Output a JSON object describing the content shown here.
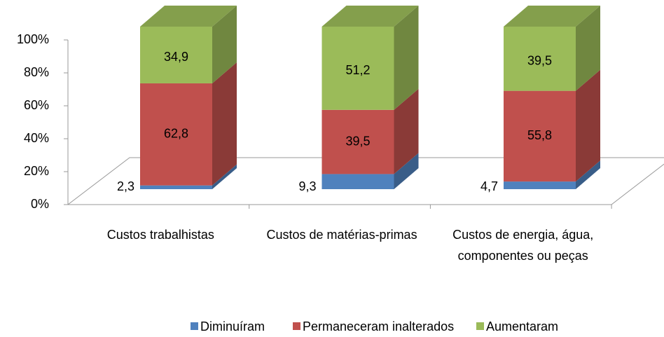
{
  "chart_data": {
    "type": "bar3d_stacked",
    "categories": [
      "Custos trabalhistas",
      "Custos de matérias-primas",
      "Custos de energia, água, componentes ou peças"
    ],
    "series": [
      {
        "name": "Diminuíram",
        "color": "#4f81bd",
        "values": [
          2.3,
          9.3,
          4.7
        ],
        "value_labels": [
          "2,3",
          "9,3",
          "4,7"
        ]
      },
      {
        "name": "Permaneceram inalterados",
        "color": "#c0504d",
        "values": [
          62.8,
          39.5,
          55.8
        ],
        "value_labels": [
          "62,8",
          "39,5",
          "55,8"
        ]
      },
      {
        "name": "Aumentaram",
        "color": "#9bbb59",
        "values": [
          34.9,
          51.2,
          39.5
        ],
        "value_labels": [
          "34,9",
          "51,2",
          "39,5"
        ]
      }
    ],
    "ylim": [
      0,
      100
    ],
    "yticks": [
      {
        "value": 0,
        "label": "0%"
      },
      {
        "value": 20,
        "label": "20%"
      },
      {
        "value": 40,
        "label": "40%"
      },
      {
        "value": 60,
        "label": "60%"
      },
      {
        "value": 80,
        "label": "80%"
      },
      {
        "value": 100,
        "label": "100%"
      }
    ],
    "legend": "bottom"
  }
}
